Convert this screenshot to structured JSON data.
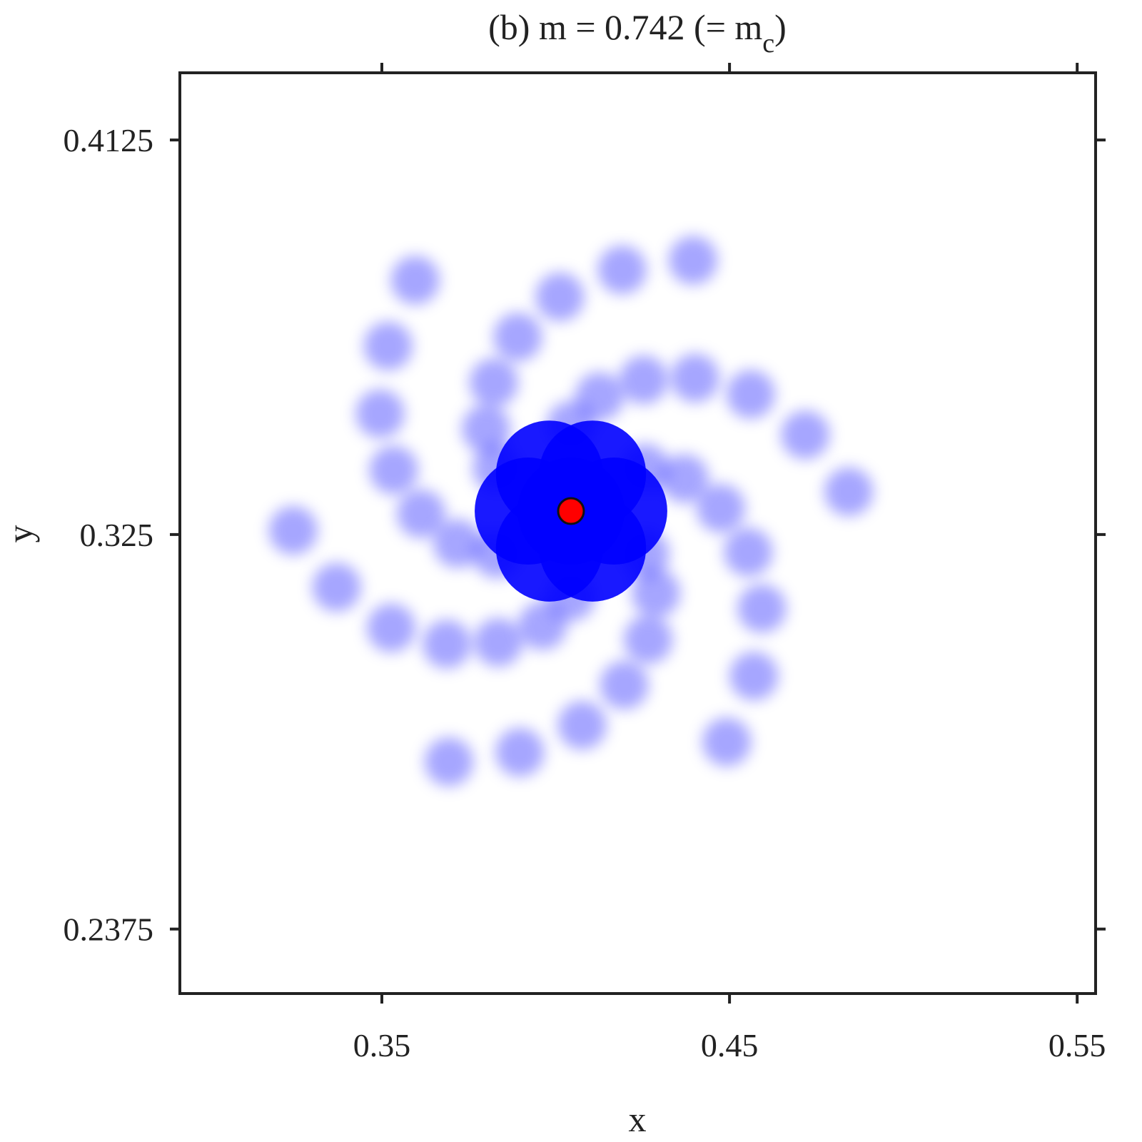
{
  "chart_data": {
    "type": "scatter",
    "title": "(b)  m = 0.742  (= m",
    "title_subscript": "c",
    "title_end": ")",
    "x_label": "x",
    "y_label": "y",
    "xlim": [
      0.2919,
      0.5553
    ],
    "ylim": [
      0.2232,
      0.4274
    ],
    "xticks": [
      0.35,
      0.45,
      0.55
    ],
    "yticks": [
      0.2375,
      0.325,
      0.4125
    ],
    "series": [
      {
        "color": "#0000ff",
        "x": [
          0.4044,
          0.4126,
          0.4253,
          0.4401,
          0.4561,
          0.4718,
          0.4843,
          0.4257,
          0.437,
          0.4475,
          0.4554,
          0.4593,
          0.457,
          0.4492,
          0.4257,
          0.4288,
          0.4266,
          0.4197,
          0.4076,
          0.3897,
          0.3693,
          0.4044,
          0.3962,
          0.3835,
          0.3687,
          0.3527,
          0.337,
          0.3245,
          0.3831,
          0.3718,
          0.3613,
          0.3534,
          0.3495,
          0.3518,
          0.3596,
          0.3831,
          0.38,
          0.3822,
          0.3891,
          0.4012,
          0.4191,
          0.4395
        ],
        "y": [
          0.3492,
          0.3556,
          0.3593,
          0.3597,
          0.3561,
          0.3471,
          0.3345,
          0.3397,
          0.3374,
          0.3308,
          0.3211,
          0.3086,
          0.2936,
          0.279,
          0.3207,
          0.312,
          0.3017,
          0.2916,
          0.2827,
          0.2767,
          0.2746,
          0.3112,
          0.3048,
          0.3011,
          0.3007,
          0.3043,
          0.3133,
          0.3259,
          0.3207,
          0.323,
          0.3296,
          0.3393,
          0.3518,
          0.3668,
          0.3814,
          0.3397,
          0.3484,
          0.3587,
          0.3688,
          0.3777,
          0.3837,
          0.3858
        ]
      },
      {
        "color": "#0000ff",
        "x": [
          0.4044,
          0.4167,
          0.4106,
          0.3982,
          0.3921,
          0.3982,
          0.4106
        ],
        "y": [
          0.3302,
          0.3302,
          0.3384,
          0.3384,
          0.3302,
          0.322,
          0.322
        ]
      },
      {
        "color": "#ff0000",
        "x": [
          0.4044
        ],
        "y": [
          0.3302
        ]
      }
    ]
  }
}
